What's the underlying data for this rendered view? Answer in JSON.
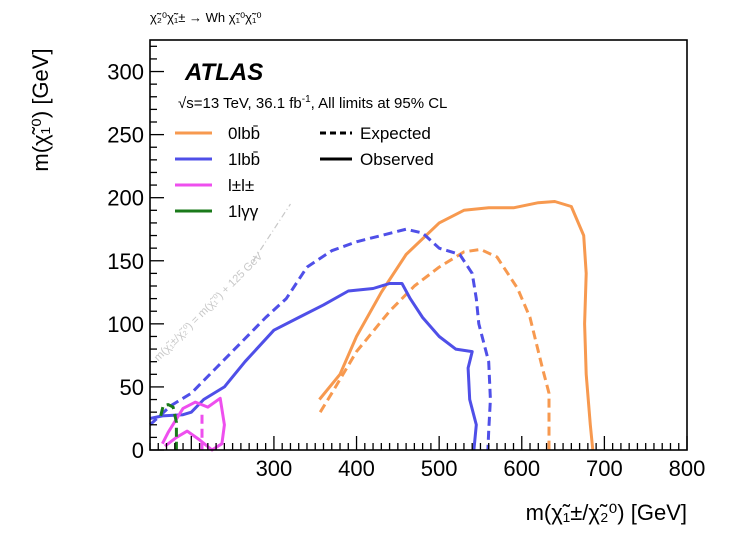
{
  "chart_data": {
    "type": "line",
    "process": "χ̃₂⁰χ̃₁± → Wh χ̃₁⁰χ̃₁⁰",
    "xlabel": "m(χ̃₁±/χ̃₂⁰) [GeV]",
    "ylabel": "m(χ̃₁⁰) [GeV]",
    "xlim": [
      150,
      800
    ],
    "ylim": [
      0,
      325
    ],
    "xticks": [
      "300",
      "400",
      "500",
      "600",
      "700",
      "800"
    ],
    "yticks": [
      "0",
      "50",
      "100",
      "150",
      "200",
      "250",
      "300"
    ],
    "atlas_label": "ATLAS",
    "energy_text": "√s=13 TeV, 36.1 fb",
    "lumi_exp": "-1",
    "limits_text": ", All limits at 95% CL",
    "kinematic_label": "m(χ̃₁±/χ̃₂⁰) = m(χ̃₁⁰) + 125 GeV",
    "legend_style": [
      {
        "label": "Expected",
        "dash": true
      },
      {
        "label": "Observed",
        "dash": false
      }
    ],
    "colors": {
      "orange": "#f7994f",
      "blue": "#4f4fe8",
      "magenta": "#ee4fee",
      "green": "#1a7a1a",
      "diag": "#c8c8c8"
    },
    "series": [
      {
        "name": "0lbb̄",
        "color": "#f7994f",
        "observed": [
          [
            355,
            40
          ],
          [
            380,
            60
          ],
          [
            400,
            90
          ],
          [
            430,
            125
          ],
          [
            460,
            155
          ],
          [
            500,
            180
          ],
          [
            530,
            190
          ],
          [
            560,
            192
          ],
          [
            590,
            192
          ],
          [
            620,
            196
          ],
          [
            640,
            197
          ],
          [
            660,
            193
          ],
          [
            675,
            170
          ],
          [
            678,
            140
          ],
          [
            676,
            100
          ],
          [
            678,
            60
          ],
          [
            683,
            20
          ],
          [
            686,
            0
          ]
        ],
        "expected": [
          [
            356,
            30
          ],
          [
            370,
            45
          ],
          [
            400,
            78
          ],
          [
            440,
            110
          ],
          [
            470,
            130
          ],
          [
            500,
            145
          ],
          [
            530,
            157
          ],
          [
            550,
            159
          ],
          [
            570,
            153
          ],
          [
            595,
            128
          ],
          [
            610,
            105
          ],
          [
            625,
            65
          ],
          [
            633,
            45
          ],
          [
            633,
            0
          ]
        ]
      },
      {
        "name": "1lbb̄",
        "color": "#4f4fe8",
        "observed": [
          [
            150,
            25
          ],
          [
            165,
            27
          ],
          [
            190,
            28
          ],
          [
            200,
            30
          ],
          [
            215,
            40
          ],
          [
            240,
            50
          ],
          [
            265,
            70
          ],
          [
            300,
            95
          ],
          [
            330,
            105
          ],
          [
            360,
            115
          ],
          [
            390,
            126
          ],
          [
            420,
            128
          ],
          [
            440,
            132
          ],
          [
            455,
            132
          ],
          [
            465,
            120
          ],
          [
            480,
            105
          ],
          [
            500,
            90
          ],
          [
            520,
            80
          ],
          [
            540,
            78
          ],
          [
            535,
            65
          ],
          [
            537,
            40
          ],
          [
            545,
            20
          ],
          [
            542,
            0
          ]
        ],
        "expected": [
          [
            150,
            20
          ],
          [
            175,
            35
          ],
          [
            200,
            45
          ],
          [
            230,
            65
          ],
          [
            260,
            85
          ],
          [
            290,
            105
          ],
          [
            315,
            120
          ],
          [
            340,
            145
          ],
          [
            370,
            158
          ],
          [
            400,
            165
          ],
          [
            430,
            170
          ],
          [
            460,
            175
          ],
          [
            480,
            172
          ],
          [
            500,
            160
          ],
          [
            525,
            155
          ],
          [
            540,
            140
          ],
          [
            545,
            120
          ],
          [
            548,
            100
          ],
          [
            560,
            70
          ],
          [
            562,
            40
          ],
          [
            560,
            15
          ],
          [
            559,
            0
          ]
        ]
      },
      {
        "name": "l±l±",
        "color": "#ee4fee",
        "observed": [
          [
            165,
            5
          ],
          [
            172,
            14
          ],
          [
            190,
            33
          ],
          [
            205,
            38
          ],
          [
            220,
            34
          ],
          [
            235,
            41
          ],
          [
            240,
            20
          ],
          [
            237,
            5
          ],
          [
            225,
            0
          ],
          [
            210,
            8
          ],
          [
            195,
            15
          ],
          [
            182,
            10
          ],
          [
            168,
            3
          ]
        ],
        "expected": [
          [
            213,
            28
          ],
          [
            213,
            0
          ]
        ]
      },
      {
        "name": "1lγγ",
        "color": "#1a7a1a",
        "observed": [],
        "expected": [
          [
            163,
            27
          ],
          [
            166,
            35
          ],
          [
            172,
            36
          ],
          [
            178,
            34
          ],
          [
            182,
            22
          ],
          [
            182,
            0
          ]
        ]
      }
    ]
  }
}
